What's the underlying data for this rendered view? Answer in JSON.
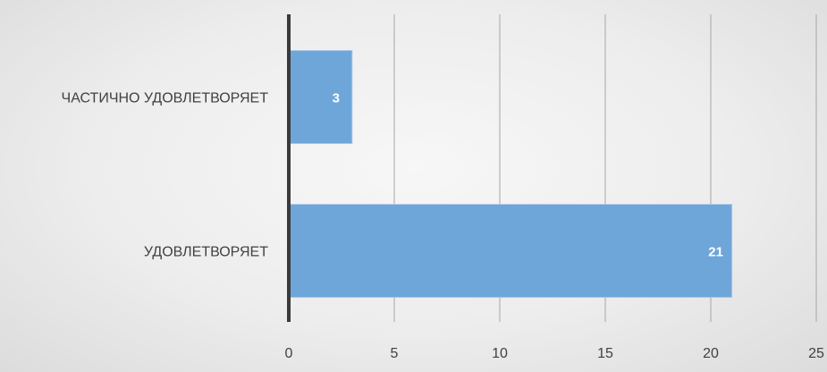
{
  "chart_data": {
    "type": "bar",
    "orientation": "horizontal",
    "categories": [
      "ЧАСТИЧНО УДОВЛЕТВОРЯЕТ",
      "УДОВЛЕТВОРЯЕТ"
    ],
    "values": [
      3,
      21
    ],
    "data_labels": [
      "3",
      "21"
    ],
    "xlim": [
      0,
      25
    ],
    "x_ticks": [
      0,
      5,
      10,
      15,
      20,
      25
    ],
    "x_tick_labels": [
      "0",
      "5",
      "10",
      "15",
      "20",
      "25"
    ],
    "grid": "vertical",
    "title": "",
    "xlabel": "",
    "ylabel": "",
    "colors": {
      "bar": "#6fa6d9",
      "bar_border": "#a9c6e6",
      "data_label": "#ffffff",
      "gridline": "#a6a6a6",
      "axis": "#3a3a3a",
      "text": "#404040"
    }
  }
}
